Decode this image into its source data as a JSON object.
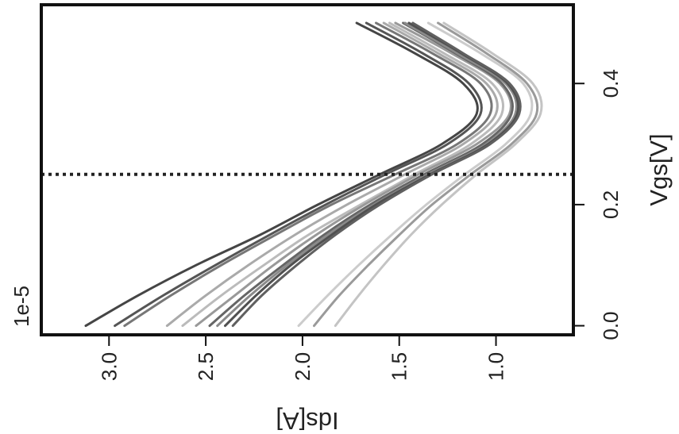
{
  "chart_data": {
    "type": "line",
    "rotated": "90deg-clockwise",
    "xlabel": "Vgs[V]",
    "ylabel": "Ids[A]",
    "y_multiplier_label": "1e-5",
    "xlim": [
      -0.015,
      0.53
    ],
    "ylim": [
      0.6,
      3.35
    ],
    "x_ticks": [
      {
        "value": 0.0,
        "label": "0.0"
      },
      {
        "value": 0.2,
        "label": "0.2"
      },
      {
        "value": 0.4,
        "label": "0.4"
      }
    ],
    "y_ticks": [
      {
        "value": 1.0,
        "label": "1.0"
      },
      {
        "value": 1.5,
        "label": "1.5"
      },
      {
        "value": 2.0,
        "label": "2.0"
      },
      {
        "value": 2.5,
        "label": "2.5"
      },
      {
        "value": 3.0,
        "label": "3.0"
      }
    ],
    "reference_line": {
      "x": 0.25,
      "style": "dotted",
      "color": "#222222"
    },
    "series": [
      {
        "color": "#454545",
        "x": [
          0,
          0.05,
          0.1,
          0.15,
          0.2,
          0.25,
          0.3,
          0.35,
          0.4,
          0.45,
          0.5
        ],
        "y": [
          3.12,
          2.85,
          2.55,
          2.22,
          1.92,
          1.6,
          1.28,
          1.1,
          1.17,
          1.42,
          1.72
        ]
      },
      {
        "color": "#555555",
        "x": [
          0,
          0.05,
          0.1,
          0.15,
          0.2,
          0.25,
          0.3,
          0.35,
          0.4,
          0.45,
          0.5
        ],
        "y": [
          2.97,
          2.72,
          2.45,
          2.17,
          1.88,
          1.57,
          1.25,
          1.08,
          1.14,
          1.38,
          1.67
        ]
      },
      {
        "color": "#777777",
        "x": [
          0,
          0.05,
          0.1,
          0.15,
          0.2,
          0.25,
          0.3,
          0.35,
          0.4,
          0.45,
          0.5
        ],
        "y": [
          2.92,
          2.68,
          2.42,
          2.14,
          1.85,
          1.52,
          1.2,
          1.03,
          1.08,
          1.33,
          1.62
        ]
      },
      {
        "color": "#aaaaaa",
        "x": [
          0,
          0.05,
          0.1,
          0.15,
          0.2,
          0.25,
          0.3,
          0.35,
          0.4,
          0.45,
          0.5
        ],
        "y": [
          2.7,
          2.5,
          2.28,
          2.04,
          1.77,
          1.47,
          1.17,
          1.0,
          1.05,
          1.3,
          1.58
        ]
      },
      {
        "color": "#bbbbbb",
        "x": [
          0,
          0.05,
          0.1,
          0.15,
          0.2,
          0.25,
          0.3,
          0.35,
          0.4,
          0.45,
          0.5
        ],
        "y": [
          2.62,
          2.42,
          2.2,
          1.97,
          1.7,
          1.42,
          1.13,
          0.97,
          1.02,
          1.27,
          1.55
        ]
      },
      {
        "color": "#999999",
        "x": [
          0,
          0.05,
          0.1,
          0.15,
          0.2,
          0.25,
          0.3,
          0.35,
          0.4,
          0.45,
          0.5
        ],
        "y": [
          2.55,
          2.35,
          2.15,
          1.93,
          1.68,
          1.4,
          1.1,
          0.93,
          0.98,
          1.23,
          1.52
        ]
      },
      {
        "color": "#666666",
        "x": [
          0,
          0.05,
          0.1,
          0.15,
          0.2,
          0.25,
          0.3,
          0.35,
          0.4,
          0.45,
          0.5
        ],
        "y": [
          2.48,
          2.3,
          2.1,
          1.89,
          1.65,
          1.37,
          1.07,
          0.92,
          0.97,
          1.21,
          1.48
        ]
      },
      {
        "color": "#8a8a8a",
        "x": [
          0,
          0.05,
          0.1,
          0.15,
          0.2,
          0.25,
          0.3,
          0.35,
          0.4,
          0.45,
          0.5
        ],
        "y": [
          2.44,
          2.27,
          2.08,
          1.87,
          1.63,
          1.35,
          1.05,
          0.9,
          0.95,
          1.2,
          1.47
        ]
      },
      {
        "color": "#505050",
        "x": [
          0,
          0.05,
          0.1,
          0.15,
          0.2,
          0.25,
          0.3,
          0.35,
          0.4,
          0.45,
          0.5
        ],
        "y": [
          2.4,
          2.24,
          2.06,
          1.85,
          1.62,
          1.34,
          1.04,
          0.89,
          0.94,
          1.18,
          1.45
        ]
      },
      {
        "color": "#606060",
        "x": [
          0,
          0.05,
          0.1,
          0.15,
          0.2,
          0.25,
          0.3,
          0.35,
          0.4,
          0.45,
          0.5
        ],
        "y": [
          2.36,
          2.21,
          2.03,
          1.83,
          1.6,
          1.33,
          1.03,
          0.88,
          0.93,
          1.17,
          1.43
        ]
      },
      {
        "color": "#cccccc",
        "x": [
          0,
          0.05,
          0.1,
          0.15,
          0.2,
          0.25,
          0.3,
          0.35,
          0.4,
          0.45,
          0.5
        ],
        "y": [
          2.02,
          1.87,
          1.71,
          1.54,
          1.36,
          1.16,
          0.95,
          0.82,
          0.86,
          1.08,
          1.35
        ]
      },
      {
        "color": "#9a9a9a",
        "x": [
          0,
          0.05,
          0.1,
          0.15,
          0.2,
          0.25,
          0.3,
          0.35,
          0.4,
          0.45,
          0.5
        ],
        "y": [
          1.94,
          1.81,
          1.66,
          1.5,
          1.33,
          1.13,
          0.92,
          0.79,
          0.84,
          1.05,
          1.3
        ]
      },
      {
        "color": "#c4c4c4",
        "x": [
          0,
          0.05,
          0.1,
          0.15,
          0.2,
          0.25,
          0.3,
          0.35,
          0.4,
          0.45,
          0.5
        ],
        "y": [
          1.83,
          1.71,
          1.58,
          1.44,
          1.28,
          1.1,
          0.9,
          0.77,
          0.81,
          1.02,
          1.27
        ]
      }
    ]
  }
}
